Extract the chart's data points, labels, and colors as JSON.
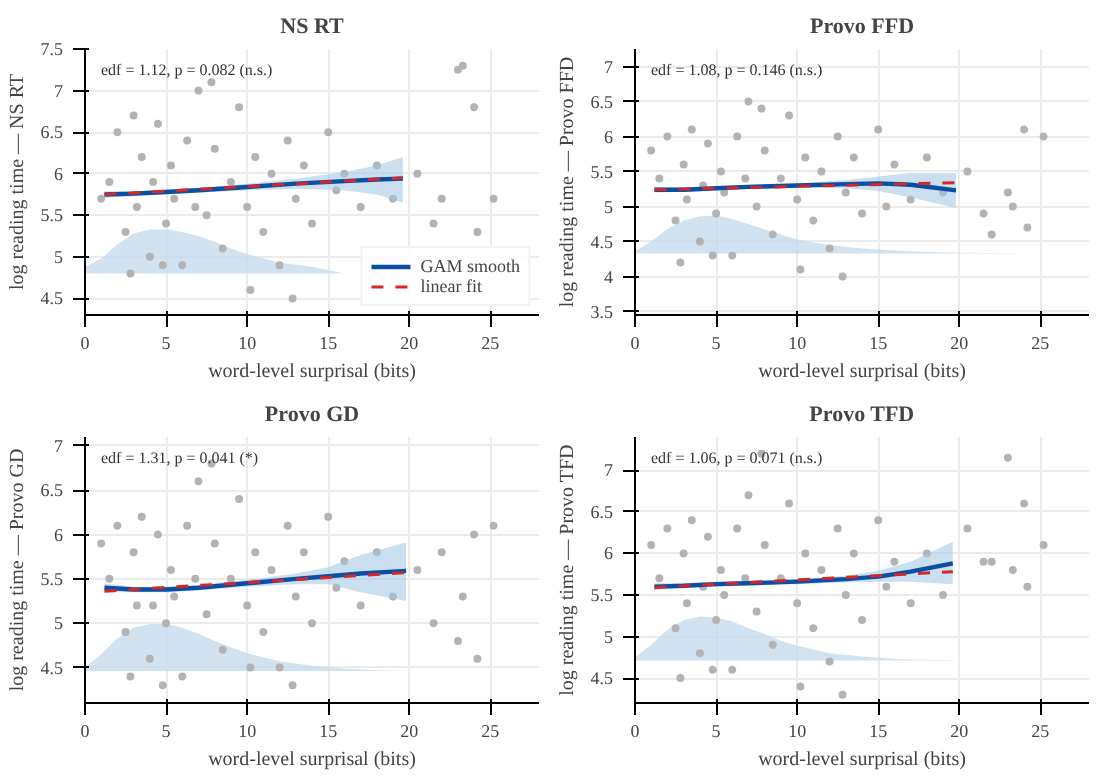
{
  "chart_data": [
    {
      "type": "scatter",
      "title": "NS RT",
      "xlabel": "word-level surprisal (bits)",
      "ylabel": "log reading time — NS RT",
      "annotations": [
        "edf = 1.12,  p = 0.082 (n.s.)"
      ],
      "xlim": [
        0,
        28
      ],
      "xticks": [
        0,
        5,
        10,
        15,
        20,
        25
      ],
      "ylim": [
        4.3,
        7.5
      ],
      "yticks": [
        4.5,
        5.0,
        5.5,
        6.0,
        6.5,
        7.0,
        7.5
      ],
      "grid": true,
      "legend": "bottom right",
      "series": [
        {
          "type": "scatter",
          "color": "#b3b3b3",
          "x": [
            1.5,
            2,
            2.5,
            3,
            3.2,
            3.5,
            4,
            4.2,
            4.5,
            5,
            5.3,
            5.5,
            6,
            6.3,
            6.8,
            7,
            7.5,
            8,
            8.5,
            9,
            9.5,
            10,
            10.5,
            11,
            11.5,
            12,
            12.5,
            13,
            13.5,
            14,
            15,
            15.5,
            16,
            17,
            18,
            19,
            20.5,
            21.5,
            22,
            23,
            23.3,
            24,
            24.2,
            25.2,
            1,
            2.8,
            4.8,
            7.8,
            10.2,
            12.8
          ],
          "values": [
            5.9,
            6.5,
            5.3,
            6.7,
            5.6,
            6.2,
            5.0,
            5.9,
            6.6,
            5.4,
            6.1,
            5.7,
            4.9,
            6.4,
            5.6,
            7.0,
            5.5,
            6.3,
            5.1,
            5.9,
            6.8,
            5.6,
            6.2,
            5.3,
            6.0,
            4.9,
            6.4,
            5.7,
            6.1,
            5.4,
            6.5,
            5.8,
            6.0,
            5.6,
            6.1,
            5.7,
            6.0,
            5.4,
            5.7,
            7.25,
            7.3,
            6.8,
            5.3,
            5.7,
            5.7,
            4.8,
            4.9,
            7.1,
            4.6,
            4.5
          ]
        },
        {
          "type": "area",
          "color": "#c6dcec",
          "x": [
            0,
            1,
            2,
            3,
            4,
            5,
            6,
            7,
            8,
            9,
            10,
            12,
            14,
            16
          ],
          "values": [
            4.88,
            4.98,
            5.15,
            5.28,
            5.33,
            5.33,
            5.3,
            5.25,
            5.18,
            5.1,
            5.03,
            4.93,
            4.88,
            4.8
          ]
        },
        {
          "type": "line",
          "name": "GAM smooth",
          "color": "#0b4ea2",
          "x": [
            1.2,
            3,
            5,
            7,
            10,
            13,
            16,
            18,
            19.6
          ],
          "values": [
            5.75,
            5.76,
            5.78,
            5.8,
            5.84,
            5.88,
            5.91,
            5.93,
            5.94
          ],
          "lower": [
            5.71,
            5.73,
            5.75,
            5.77,
            5.8,
            5.82,
            5.8,
            5.75,
            5.65
          ],
          "upper": [
            5.79,
            5.79,
            5.81,
            5.83,
            5.88,
            5.94,
            6.02,
            6.1,
            6.2
          ]
        },
        {
          "type": "line",
          "name": "linear fit",
          "color": "#d62728",
          "line_style": "dashed",
          "x": [
            1.2,
            19.6
          ],
          "values": [
            5.75,
            5.95
          ]
        }
      ]
    },
    {
      "type": "scatter",
      "title": "Provo FFD",
      "xlabel": "word-level surprisal (bits)",
      "ylabel": "log reading time — Provo FFD",
      "annotations": [
        "edf = 1.08,  p = 0.146 (n.s.)"
      ],
      "xlim": [
        0,
        28
      ],
      "xticks": [
        0,
        5,
        10,
        15,
        20,
        25
      ],
      "ylim": [
        3.45,
        7.25
      ],
      "yticks": [
        3.5,
        4.0,
        4.5,
        5.0,
        5.5,
        6.0,
        6.5,
        7.0
      ],
      "grid": true,
      "series": [
        {
          "type": "scatter",
          "color": "#b3b3b3",
          "x": [
            1.5,
            2,
            2.5,
            3,
            3.2,
            3.5,
            4,
            4.2,
            4.5,
            5,
            5.3,
            5.5,
            6,
            6.3,
            6.8,
            7,
            7.5,
            8,
            8.5,
            9,
            9.5,
            10,
            10.5,
            11,
            11.5,
            12,
            12.5,
            13,
            13.5,
            14,
            15,
            15.5,
            16,
            17,
            18,
            19,
            20.5,
            21.5,
            22,
            23,
            23.3,
            24,
            24.2,
            25.2,
            1,
            2.8,
            4.8,
            7.8,
            10.2,
            12.8
          ],
          "values": [
            5.4,
            6.0,
            4.8,
            5.6,
            5.1,
            6.1,
            4.5,
            5.3,
            5.9,
            4.9,
            5.5,
            5.2,
            4.3,
            6.0,
            5.4,
            6.5,
            5.0,
            5.8,
            4.6,
            5.4,
            6.3,
            5.1,
            5.7,
            4.8,
            5.5,
            4.4,
            6.0,
            5.2,
            5.7,
            4.9,
            6.1,
            5.0,
            5.6,
            5.1,
            5.7,
            5.2,
            5.5,
            4.9,
            4.6,
            5.2,
            5.0,
            6.1,
            4.7,
            6.0,
            5.8,
            4.2,
            4.3,
            6.4,
            4.1,
            4.0
          ]
        },
        {
          "type": "area",
          "color": "#c6dcec",
          "x": [
            0,
            1,
            2,
            3,
            4,
            5,
            6,
            7,
            8,
            9,
            10,
            12,
            14,
            16,
            18,
            20,
            24,
            28
          ],
          "values": [
            4.36,
            4.5,
            4.68,
            4.8,
            4.86,
            4.87,
            4.82,
            4.75,
            4.67,
            4.6,
            4.53,
            4.45,
            4.4,
            4.37,
            4.35,
            4.34,
            4.33,
            4.33
          ]
        },
        {
          "type": "line",
          "color": "#0b4ea2",
          "x": [
            1.2,
            3,
            5,
            7,
            10,
            13,
            15,
            17,
            19.8
          ],
          "values": [
            5.24,
            5.24,
            5.26,
            5.28,
            5.3,
            5.32,
            5.33,
            5.31,
            5.23
          ],
          "lower": [
            5.2,
            5.21,
            5.23,
            5.25,
            5.27,
            5.26,
            5.22,
            5.13,
            4.98
          ],
          "upper": [
            5.28,
            5.27,
            5.29,
            5.31,
            5.33,
            5.38,
            5.43,
            5.48,
            5.48
          ]
        },
        {
          "type": "line",
          "color": "#d62728",
          "line_style": "dashed",
          "x": [
            1.2,
            19.8
          ],
          "values": [
            5.24,
            5.34
          ]
        }
      ]
    },
    {
      "type": "scatter",
      "title": "Provo GD",
      "xlabel": "word-level surprisal (bits)",
      "ylabel": "log reading time — Provo GD",
      "annotations": [
        "edf = 1.31,  p = 0.041 (*)"
      ],
      "xlim": [
        0,
        28
      ],
      "xticks": [
        0,
        5,
        10,
        15,
        20,
        25
      ],
      "ylim": [
        4.1,
        7.1
      ],
      "yticks": [
        4.5,
        5.0,
        5.5,
        6.0,
        6.5,
        7.0
      ],
      "grid": true,
      "series": [
        {
          "type": "scatter",
          "color": "#b3b3b3",
          "x": [
            1.5,
            2,
            2.5,
            3,
            3.2,
            3.5,
            4,
            4.2,
            4.5,
            5,
            5.3,
            5.5,
            6,
            6.3,
            6.8,
            7,
            7.5,
            8,
            8.5,
            9,
            9.5,
            10,
            10.5,
            11,
            11.5,
            12,
            12.5,
            13,
            13.5,
            14,
            15,
            15.5,
            16,
            17,
            18,
            19,
            20.5,
            21.5,
            22,
            23,
            23.3,
            24,
            24.2,
            25.2,
            1,
            2.8,
            4.8,
            7.8,
            10.2,
            12.8
          ],
          "values": [
            5.5,
            6.1,
            4.9,
            5.8,
            5.2,
            6.2,
            4.6,
            5.2,
            6.0,
            5.0,
            5.6,
            5.3,
            4.4,
            6.1,
            5.5,
            6.6,
            5.1,
            5.9,
            4.7,
            5.5,
            6.4,
            5.2,
            5.8,
            4.9,
            5.6,
            4.5,
            6.1,
            5.3,
            5.8,
            5.0,
            6.2,
            5.4,
            5.7,
            5.2,
            5.8,
            5.3,
            5.6,
            5.0,
            5.8,
            4.8,
            5.3,
            6.0,
            4.6,
            6.1,
            5.9,
            4.4,
            4.3,
            6.8,
            4.5,
            4.3
          ]
        },
        {
          "type": "area",
          "color": "#c6dcec",
          "x": [
            0,
            1,
            2,
            3,
            4,
            5,
            6,
            7,
            8,
            9,
            10,
            12,
            14,
            16,
            18,
            20,
            24,
            28
          ],
          "values": [
            4.5,
            4.65,
            4.83,
            4.95,
            4.99,
            4.99,
            4.95,
            4.88,
            4.8,
            4.73,
            4.66,
            4.57,
            4.52,
            4.49,
            4.47,
            4.46,
            4.46,
            4.46
          ]
        },
        {
          "type": "line",
          "color": "#0b4ea2",
          "x": [
            1.2,
            3,
            5,
            7,
            10,
            13,
            15,
            17,
            19.8
          ],
          "values": [
            5.4,
            5.38,
            5.38,
            5.4,
            5.45,
            5.5,
            5.53,
            5.56,
            5.59
          ],
          "lower": [
            5.35,
            5.35,
            5.35,
            5.37,
            5.41,
            5.44,
            5.44,
            5.35,
            5.25
          ],
          "upper": [
            5.45,
            5.41,
            5.41,
            5.43,
            5.49,
            5.56,
            5.63,
            5.77,
            5.91
          ]
        },
        {
          "type": "line",
          "color": "#d62728",
          "line_style": "dashed",
          "x": [
            1.2,
            19.8
          ],
          "values": [
            5.36,
            5.57
          ]
        }
      ]
    },
    {
      "type": "scatter",
      "title": "Provo TFD",
      "xlabel": "word-level surprisal (bits)",
      "ylabel": "log reading time — Provo TFD",
      "annotations": [
        "edf = 1.06,  p = 0.071 (n.s.)"
      ],
      "xlim": [
        0,
        28
      ],
      "xticks": [
        0,
        5,
        10,
        15,
        20,
        25
      ],
      "ylim": [
        4.2,
        7.4
      ],
      "yticks": [
        4.5,
        5.0,
        5.5,
        6.0,
        6.5,
        7.0
      ],
      "grid": true,
      "series": [
        {
          "type": "scatter",
          "color": "#b3b3b3",
          "x": [
            1.5,
            2,
            2.5,
            3,
            3.2,
            3.5,
            4,
            4.2,
            4.5,
            5,
            5.3,
            5.5,
            6,
            6.3,
            6.8,
            7,
            7.5,
            8,
            8.5,
            9,
            9.5,
            10,
            10.5,
            11,
            11.5,
            12,
            12.5,
            13,
            13.5,
            14,
            15,
            15.5,
            16,
            17,
            18,
            19,
            20.5,
            21.5,
            22,
            23,
            23.3,
            24,
            24.2,
            25.2,
            1,
            2.8,
            4.8,
            7.8,
            10.2,
            12.8
          ],
          "values": [
            5.7,
            6.3,
            5.1,
            6.0,
            5.4,
            6.4,
            4.8,
            5.6,
            6.2,
            5.2,
            5.8,
            5.5,
            4.6,
            6.3,
            5.7,
            6.7,
            5.3,
            6.1,
            4.9,
            5.7,
            6.6,
            5.4,
            6.0,
            5.1,
            5.8,
            4.7,
            6.3,
            5.5,
            6.0,
            5.2,
            6.4,
            5.6,
            5.9,
            5.4,
            6.0,
            5.5,
            6.3,
            5.9,
            5.9,
            7.15,
            5.8,
            6.6,
            5.6,
            6.1,
            6.1,
            4.5,
            4.6,
            7.2,
            4.4,
            4.3
          ]
        },
        {
          "type": "area",
          "color": "#c6dcec",
          "x": [
            0,
            1,
            2,
            3,
            4,
            5,
            6,
            7,
            8,
            9,
            10,
            12,
            14,
            16,
            18,
            20,
            24,
            28
          ],
          "values": [
            4.75,
            4.9,
            5.08,
            5.2,
            5.24,
            5.23,
            5.18,
            5.1,
            5.03,
            4.95,
            4.89,
            4.8,
            4.76,
            4.73,
            4.72,
            4.71,
            4.71,
            4.71
          ]
        },
        {
          "type": "line",
          "color": "#0b4ea2",
          "x": [
            1.2,
            3,
            5,
            7,
            10,
            13,
            15,
            17,
            19.6
          ],
          "values": [
            5.6,
            5.61,
            5.63,
            5.64,
            5.66,
            5.69,
            5.72,
            5.78,
            5.88
          ],
          "lower": [
            5.56,
            5.58,
            5.6,
            5.62,
            5.63,
            5.65,
            5.66,
            5.66,
            5.63
          ],
          "upper": [
            5.64,
            5.64,
            5.66,
            5.67,
            5.69,
            5.73,
            5.79,
            5.9,
            6.14
          ]
        },
        {
          "type": "line",
          "color": "#d62728",
          "line_style": "dashed",
          "x": [
            1.2,
            19.6
          ],
          "values": [
            5.59,
            5.78
          ]
        }
      ]
    }
  ]
}
